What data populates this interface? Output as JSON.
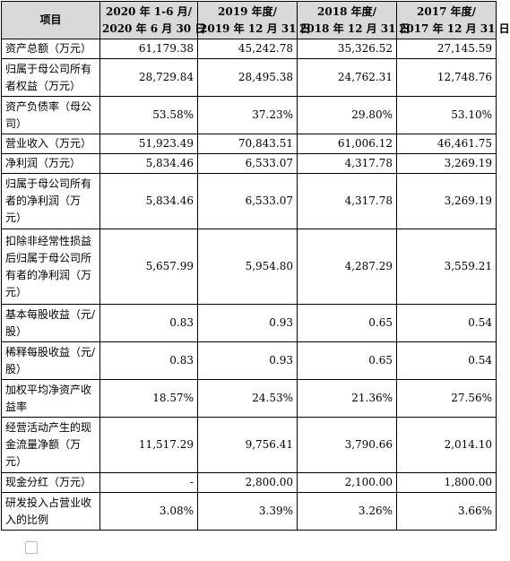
{
  "table": {
    "header": {
      "item": "项目",
      "periods": [
        {
          "line1": "2020 年 1-6 月/",
          "line2": "2020 年 6 月 30 日"
        },
        {
          "line1": "2019 年度/",
          "line2": "2019 年 12 月 31 日"
        },
        {
          "line1": "2018 年度/",
          "line2": "2018 年 12 月 31 日"
        },
        {
          "line1": "2017 年度/",
          "line2": "2017 年 12 月 31 日"
        }
      ]
    },
    "rows": [
      {
        "label": "资产总额（万元）",
        "values": [
          "61,179.38",
          "45,242.78",
          "35,326.52",
          "27,145.59"
        ]
      },
      {
        "label": "归属于母公司所有者权益（万元）",
        "values": [
          "28,729.84",
          "28,495.38",
          "24,762.31",
          "12,748.76"
        ]
      },
      {
        "label": "资产负债率（母公司）",
        "values": [
          "53.58%",
          "37.23%",
          "29.80%",
          "53.10%"
        ]
      },
      {
        "label": "营业收入（万元）",
        "values": [
          "51,923.49",
          "70,843.51",
          "61,006.12",
          "46,461.75"
        ]
      },
      {
        "label": "净利润（万元）",
        "values": [
          "5,834.46",
          "6,533.07",
          "4,317.78",
          "3,269.19"
        ]
      },
      {
        "label": "归属于母公司所有者的净利润（万元）",
        "values": [
          "5,834.46",
          "6,533.07",
          "4,317.78",
          "3,269.19"
        ]
      },
      {
        "label": "扣除非经常性损益后归属于母公司所有者的净利润（万元）",
        "values": [
          "5,657.99",
          "5,954.80",
          "4,287.29",
          "3,559.21"
        ]
      },
      {
        "label": "基本每股收益（元/股）",
        "values": [
          "0.83",
          "0.93",
          "0.65",
          "0.54"
        ]
      },
      {
        "label": "稀释每股收益（元/股）",
        "values": [
          "0.83",
          "0.93",
          "0.65",
          "0.54"
        ]
      },
      {
        "label": "加权平均净资产收益率",
        "values": [
          "18.57%",
          "24.53%",
          "21.36%",
          "27.56%"
        ]
      },
      {
        "label": "经营活动产生的现金流量净额（万元）",
        "values": [
          "11,517.29",
          "9,756.41",
          "3,790.66",
          "2,014.10"
        ]
      },
      {
        "label": "现金分红（万元）",
        "values": [
          "-",
          "2,800.00",
          "2,100.00",
          "1,800.00"
        ]
      },
      {
        "label": "研发投入占营业收入的比例",
        "values": [
          "3.08%",
          "3.39%",
          "3.26%",
          "3.66%"
        ]
      }
    ]
  }
}
